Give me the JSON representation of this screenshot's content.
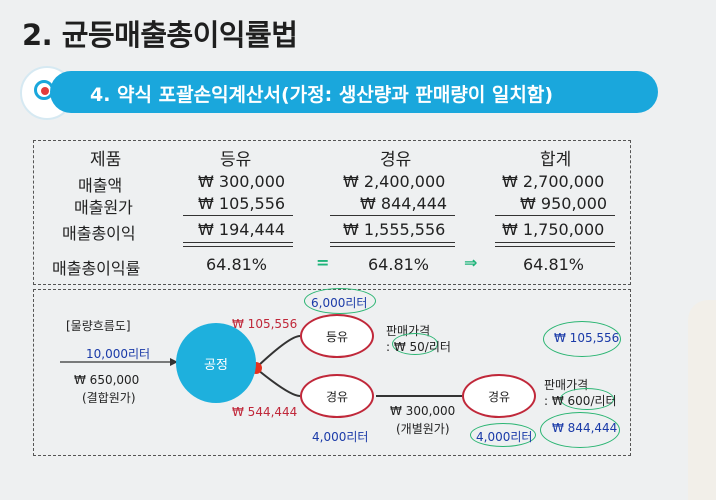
{
  "title": "2. 균등매출총이익률법",
  "banner": {
    "text": "4. 약식 포괄손익계산서(가정: 생산량과 판매량이 일치함)"
  },
  "table": {
    "headers": [
      "제품",
      "등유",
      "경유",
      "합계"
    ],
    "rows": [
      [
        "매출액",
        "₩ 300,000",
        "₩ 2,400,000",
        "₩ 2,700,000"
      ],
      [
        "매출원가",
        "₩ 105,556",
        "₩ 844,444",
        "₩ 950,000"
      ],
      [
        "매출총이익",
        "₩ 194,444",
        "₩ 1,555,556",
        "₩ 1,750,000"
      ],
      [
        "매출총이익률",
        "64.81%",
        "64.81%",
        "64.81%"
      ]
    ],
    "arrows": [
      "=",
      "⇒"
    ]
  },
  "flow": {
    "label": "[물량흐름도]",
    "input_qty": "10,000리터",
    "joint_cost": "₩ 650,000",
    "joint_cost_note": "(결합원가)",
    "process": "공정",
    "alloc_kerosene": "₩ 105,556",
    "alloc_diesel": "₩ 544,444",
    "kerosene_node": "등유",
    "kerosene_qty": "6,000리터",
    "kerosene_price_label": "판매가격",
    "kerosene_price": ": ₩ 50/리터",
    "diesel_node": "경유",
    "diesel_qty": "4,000리터",
    "additional_cost": "₩ 300,000",
    "additional_note": "(개별원가)",
    "diesel_final_node": "경유",
    "diesel_final_qty": "4,000리터",
    "diesel_price_label": "판매가격",
    "diesel_price": ": ₩ 600/리터",
    "kerosene_total": "₩ 105,556",
    "diesel_total": "₩ 844,444"
  },
  "colors": {
    "banner": "#1aa7dc",
    "process": "#1eb0dd",
    "node_border": "#c0283a",
    "highlight": "#2bb573"
  }
}
